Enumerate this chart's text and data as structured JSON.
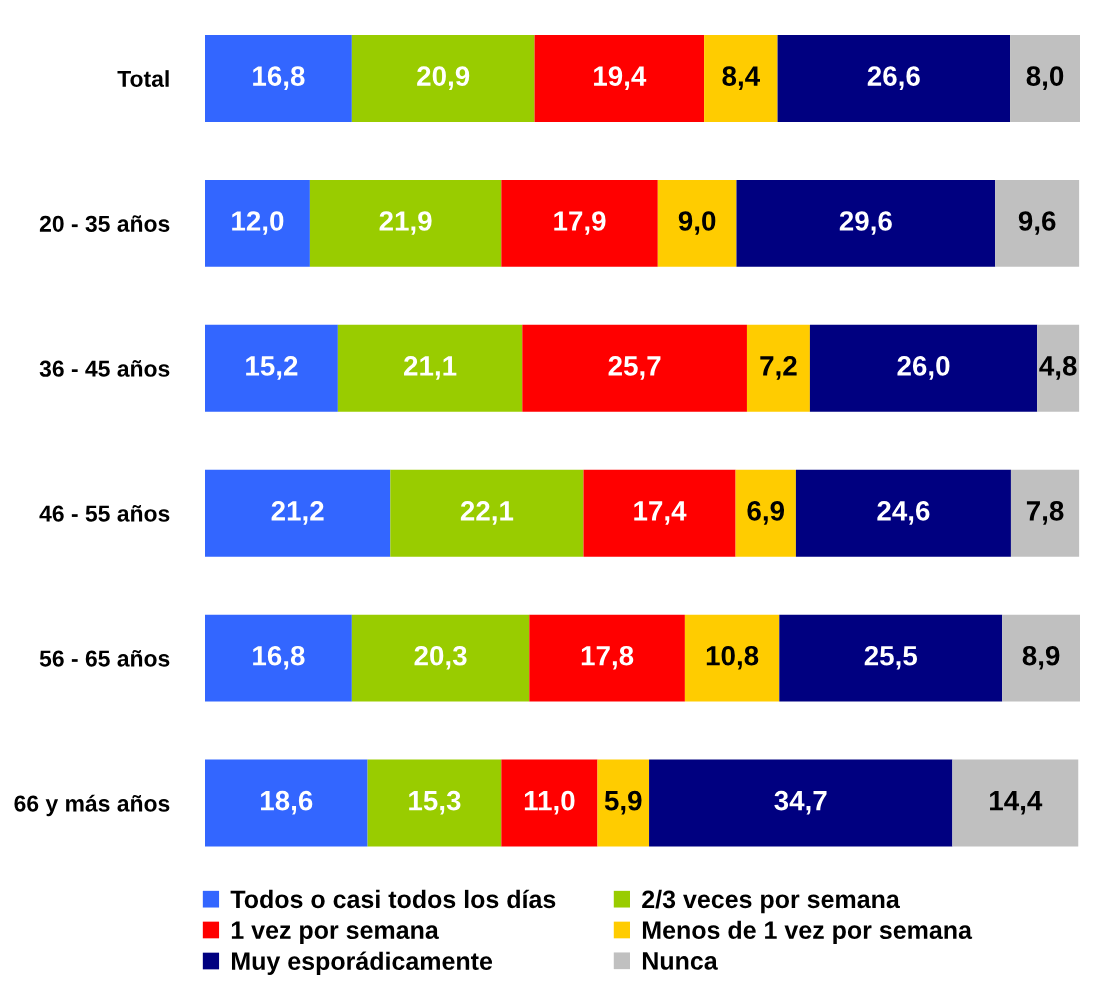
{
  "chart_data": {
    "type": "bar",
    "orientation": "horizontal",
    "stacked": true,
    "categories": [
      "Total",
      "20 - 35 años",
      "36 - 45 años",
      "46 - 55 años",
      "56 - 65 años",
      "66 y más años"
    ],
    "series": [
      {
        "name": "Todos o casi todos los días",
        "color": "#3366ff",
        "values": [
          16.8,
          12.0,
          15.2,
          21.2,
          16.8,
          18.6
        ],
        "value_labels": [
          "16,8",
          "12,0",
          "15,2",
          "21,2",
          "16,8",
          "18,6"
        ]
      },
      {
        "name": "2/3 veces por semana",
        "color": "#99cc00",
        "values": [
          20.9,
          21.9,
          21.1,
          22.1,
          20.3,
          15.3
        ],
        "value_labels": [
          "20,9",
          "21,9",
          "21,1",
          "22,1",
          "20,3",
          "15,3"
        ]
      },
      {
        "name": "1 vez por semana",
        "color": "#ff0000",
        "values": [
          19.4,
          17.9,
          25.7,
          17.4,
          17.8,
          11.0
        ],
        "value_labels": [
          "19,4",
          "17,9",
          "25,7",
          "17,4",
          "17,8",
          "11,0"
        ]
      },
      {
        "name": "Menos de 1 vez por semana",
        "color": "#ffcc00",
        "values": [
          8.4,
          9.0,
          7.2,
          6.9,
          10.8,
          5.9
        ],
        "value_labels": [
          "8,4",
          "9,0",
          "7,2",
          "6,9",
          "10,8",
          "5,9"
        ]
      },
      {
        "name": "Muy esporádicamente",
        "color": "#000080",
        "values": [
          26.6,
          29.6,
          26.0,
          24.6,
          25.5,
          34.7
        ],
        "value_labels": [
          "26,6",
          "29,6",
          "26,0",
          "24,6",
          "25,5",
          "34,7"
        ]
      },
      {
        "name": "Nunca",
        "color": "#c0c0c0",
        "values": [
          8.0,
          9.6,
          4.8,
          7.8,
          8.9,
          14.4
        ],
        "value_labels": [
          "8,0",
          "9,6",
          "4,8",
          "7,8",
          "8,9",
          "14,4"
        ]
      }
    ],
    "legend": "bottom",
    "tick_labels": "y"
  }
}
